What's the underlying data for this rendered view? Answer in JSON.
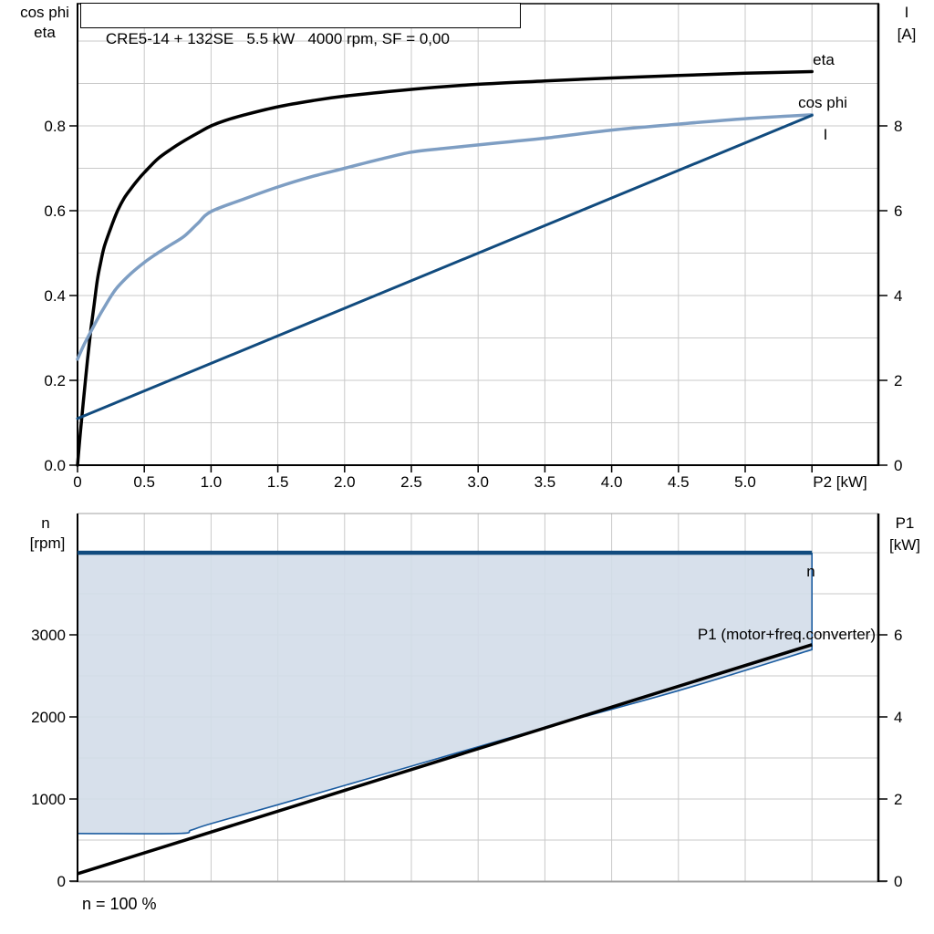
{
  "title_box": "CRE5-14 + 132SE   5.5 kW   4000 rpm, SF = 0,00",
  "colors": {
    "black": "#000000",
    "light_blue": "#7E9EC3",
    "dark_blue": "#114B7E",
    "thin_blue": "#1B5CA0",
    "area_fill": "#D3DDE9",
    "grid": "#C9C9C9",
    "axis": "#000000",
    "border_gray": "#A0A0A0",
    "n_label_blue": "#1B5CA0"
  },
  "chart_data": [
    {
      "type": "line",
      "title": "CRE5-14 + 132SE  5.5 kW  4000 rpm, SF = 0,00",
      "x_axis": {
        "label": "P2 [kW]",
        "range": [
          0,
          6
        ],
        "tick_step": 0.5,
        "tick_labels": [
          "0",
          "0.5",
          "1.0",
          "1.5",
          "2.0",
          "2.5",
          "3.0",
          "3.5",
          "4.0",
          "4.5",
          "5.0"
        ]
      },
      "left_axis": {
        "label_lines": [
          "cos phi",
          "eta"
        ],
        "range": [
          0,
          1.088
        ],
        "ticks": [
          0.0,
          0.2,
          0.4,
          0.6,
          0.8
        ],
        "tick_labels": [
          "0.0",
          "0.2",
          "0.4",
          "0.6",
          "0.8"
        ],
        "grid_step": 0.1
      },
      "right_axis": {
        "label_lines": [
          "I",
          "[A]"
        ],
        "range": [
          0,
          10.88
        ],
        "ticks": [
          0,
          2,
          4,
          6,
          8
        ],
        "tick_labels": [
          "0",
          "2",
          "4",
          "6",
          "8"
        ],
        "grid_step": 1
      },
      "series": [
        {
          "name": "eta",
          "axis": "left",
          "color_key": "black",
          "width": 3.5,
          "points": [
            [
              0,
              0
            ],
            [
              0.025,
              0.09
            ],
            [
              0.05,
              0.17
            ],
            [
              0.075,
              0.25
            ],
            [
              0.1,
              0.32
            ],
            [
              0.125,
              0.38
            ],
            [
              0.15,
              0.44
            ],
            [
              0.175,
              0.48
            ],
            [
              0.2,
              0.515
            ],
            [
              0.25,
              0.56
            ],
            [
              0.3,
              0.6
            ],
            [
              0.35,
              0.63
            ],
            [
              0.4,
              0.652
            ],
            [
              0.45,
              0.672
            ],
            [
              0.5,
              0.69
            ],
            [
              0.6,
              0.722
            ],
            [
              0.7,
              0.745
            ],
            [
              0.8,
              0.765
            ],
            [
              0.9,
              0.783
            ],
            [
              1.0,
              0.8
            ],
            [
              1.1,
              0.812
            ],
            [
              1.25,
              0.826
            ],
            [
              1.5,
              0.845
            ],
            [
              1.75,
              0.859
            ],
            [
              2.0,
              0.87
            ],
            [
              2.5,
              0.886
            ],
            [
              3.0,
              0.898
            ],
            [
              3.5,
              0.906
            ],
            [
              4.0,
              0.913
            ],
            [
              4.5,
              0.919
            ],
            [
              5.0,
              0.924
            ],
            [
              5.5,
              0.928
            ]
          ]
        },
        {
          "name": "cos phi",
          "axis": "left",
          "color_key": "light_blue",
          "width": 3.5,
          "points": [
            [
              0,
              0.25
            ],
            [
              0.05,
              0.285
            ],
            [
              0.1,
              0.315
            ],
            [
              0.15,
              0.345
            ],
            [
              0.2,
              0.372
            ],
            [
              0.25,
              0.398
            ],
            [
              0.3,
              0.42
            ],
            [
              0.4,
              0.452
            ],
            [
              0.5,
              0.478
            ],
            [
              0.6,
              0.5
            ],
            [
              0.7,
              0.52
            ],
            [
              0.8,
              0.54
            ],
            [
              0.9,
              0.57
            ],
            [
              1.0,
              0.598
            ],
            [
              1.25,
              0.628
            ],
            [
              1.5,
              0.656
            ],
            [
              1.75,
              0.68
            ],
            [
              2.0,
              0.7
            ],
            [
              2.25,
              0.72
            ],
            [
              2.5,
              0.738
            ],
            [
              2.75,
              0.747
            ],
            [
              3.0,
              0.755
            ],
            [
              3.25,
              0.763
            ],
            [
              3.5,
              0.771
            ],
            [
              4.0,
              0.79
            ],
            [
              4.5,
              0.804
            ],
            [
              5.0,
              0.817
            ],
            [
              5.5,
              0.826
            ]
          ]
        },
        {
          "name": "I",
          "axis": "right",
          "color_key": "dark_blue",
          "width": 3,
          "points": [
            [
              0,
              1.1
            ],
            [
              5.5,
              8.25
            ]
          ]
        }
      ],
      "curve_labels": [
        {
          "text": "eta",
          "color_key": "black"
        },
        {
          "text": "cos phi",
          "color_key": "light_blue"
        },
        {
          "text": "I",
          "color_key": "thin_blue"
        }
      ]
    },
    {
      "type": "line+area",
      "x_axis": {
        "label": "",
        "range": [
          0,
          6
        ],
        "tick_step": 0.5,
        "tick_labels": []
      },
      "left_axis": {
        "label_lines": [
          "n",
          "[rpm]"
        ],
        "range": [
          0,
          4478
        ],
        "ticks": [
          0,
          1000,
          2000,
          3000
        ],
        "tick_labels": [
          "0",
          "1000",
          "2000",
          "3000"
        ],
        "grid_step": 500
      },
      "right_axis": {
        "label_lines": [
          "P1",
          "[kW]"
        ],
        "range": [
          0,
          8.96
        ],
        "ticks": [
          0,
          2,
          4,
          6
        ],
        "tick_labels": [
          "0",
          "2",
          "4",
          "6"
        ],
        "grid_step": 1
      },
      "area": {
        "name": "speed-control-range",
        "top_rpm": 4000,
        "x_end_kw": 5.5,
        "color_key": "area_fill",
        "lower_boundary_points_rpm": [
          [
            0,
            580
          ],
          [
            0.75,
            580
          ],
          [
            0.85,
            620
          ],
          [
            1.0,
            700
          ],
          [
            1.5,
            930
          ],
          [
            2.5,
            1400
          ],
          [
            3.5,
            1870
          ],
          [
            4.5,
            2320
          ],
          [
            5.5,
            2820
          ]
        ]
      },
      "series": [
        {
          "name": "n",
          "axis": "left",
          "color_key": "dark_blue",
          "width": 4.5,
          "points": [
            [
              0,
              4000
            ],
            [
              5.5,
              4000
            ]
          ]
        },
        {
          "name": "P1 (motor+freq.converter)",
          "axis": "right",
          "color_key": "black",
          "width": 3.5,
          "points": [
            [
              0,
              0.18
            ],
            [
              5.5,
              5.76
            ]
          ]
        }
      ],
      "curve_labels": [
        {
          "text": "n",
          "color_key": "n_label_blue"
        },
        {
          "text": "P1 (motor+freq.converter)",
          "color_key": "black"
        }
      ],
      "footnote": "n = 100 %"
    }
  ]
}
